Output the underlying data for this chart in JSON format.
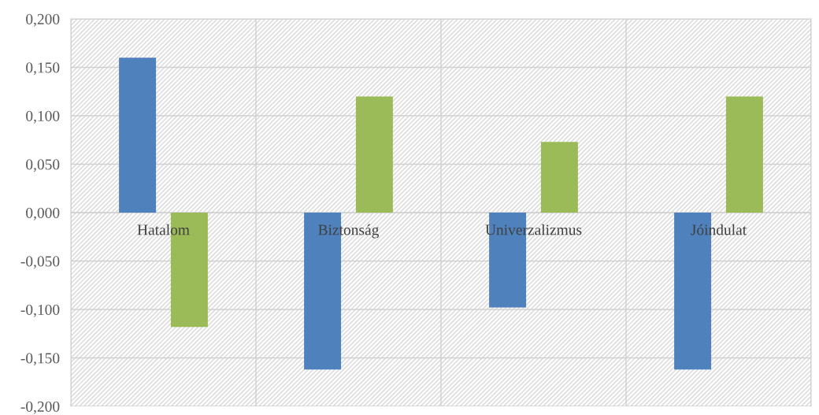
{
  "chart_data": {
    "type": "bar",
    "categories": [
      "Hatalom",
      "Biztonság",
      "Univerzalizmus",
      "Jóindulat"
    ],
    "series": [
      {
        "color": "#4f81bd",
        "values": [
          0.16,
          -0.162,
          -0.098,
          -0.162
        ]
      },
      {
        "color": "#9bbb59",
        "values": [
          -0.118,
          0.12,
          0.073,
          0.12
        ]
      }
    ],
    "ylim": [
      -0.2,
      0.2
    ],
    "yticks": [
      {
        "value": -0.2,
        "label": "-0,200"
      },
      {
        "value": -0.15,
        "label": "-0,150"
      },
      {
        "value": -0.1,
        "label": "-0,100"
      },
      {
        "value": -0.05,
        "label": "-0,050"
      },
      {
        "value": 0,
        "label": "0,000"
      },
      {
        "value": 0.05,
        "label": "0,050"
      },
      {
        "value": 0.1,
        "label": "0,100"
      },
      {
        "value": 0.15,
        "label": "0,150"
      },
      {
        "value": 0.2,
        "label": "0,200"
      }
    ],
    "grid": true
  }
}
